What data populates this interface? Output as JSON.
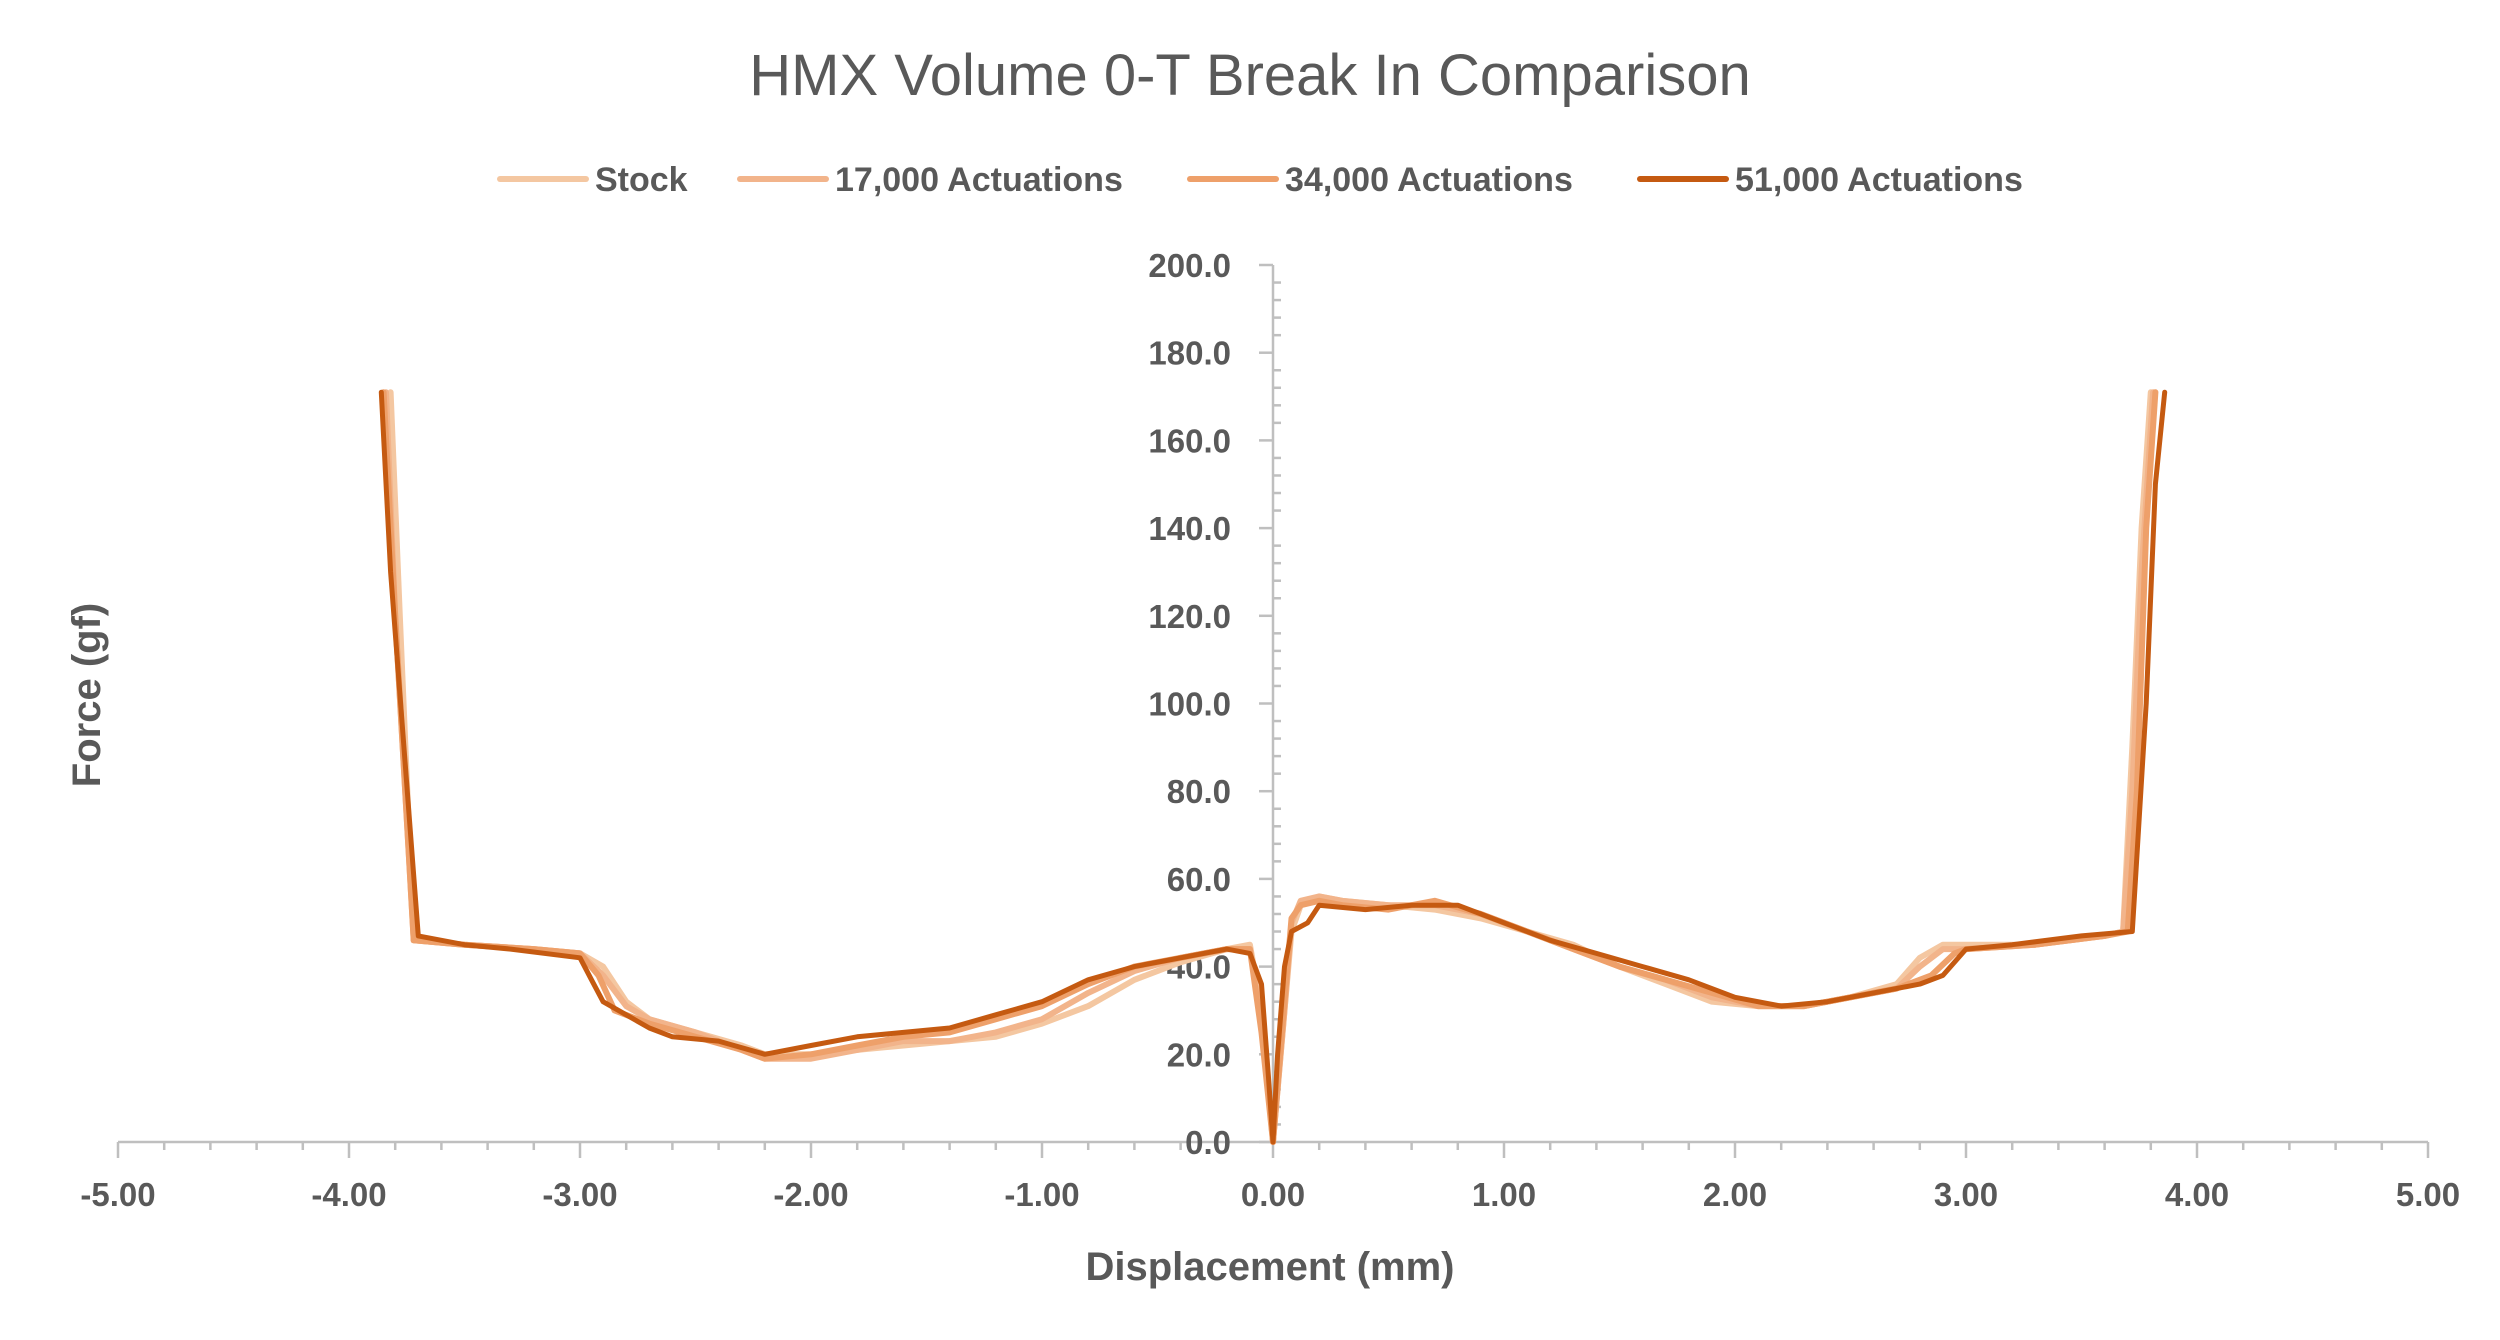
{
  "chart_data": {
    "type": "line",
    "title": "HMX Volume 0-T Break In Comparison",
    "xlabel": "Displacement (mm)",
    "ylabel": "Force (gf)",
    "xlim": [
      -5,
      5
    ],
    "ylim": [
      0,
      200
    ],
    "x_ticks": [
      "-5.00",
      "-4.00",
      "-3.00",
      "-2.00",
      "-1.00",
      "0.00",
      "1.00",
      "2.00",
      "3.00",
      "4.00",
      "5.00"
    ],
    "y_ticks": [
      "0.0",
      "20.0",
      "40.0",
      "60.0",
      "80.0",
      "100.0",
      "120.0",
      "140.0",
      "160.0",
      "180.0",
      "200.0"
    ],
    "grid": false,
    "legend_position": "top",
    "series": [
      {
        "name": "Stock",
        "color": "#f4c7a1",
        "points": [
          [
            -3.82,
            171
          ],
          [
            -3.78,
            120
          ],
          [
            -3.72,
            46
          ],
          [
            -3.5,
            45
          ],
          [
            -3.2,
            44
          ],
          [
            -3.0,
            43
          ],
          [
            -2.9,
            40
          ],
          [
            -2.8,
            32
          ],
          [
            -2.7,
            28
          ],
          [
            -2.5,
            25
          ],
          [
            -2.3,
            22
          ],
          [
            -2.2,
            20
          ],
          [
            -2.0,
            20
          ],
          [
            -1.8,
            21
          ],
          [
            -1.6,
            22
          ],
          [
            -1.4,
            23
          ],
          [
            -1.2,
            24
          ],
          [
            -1.0,
            27
          ],
          [
            -0.8,
            31
          ],
          [
            -0.6,
            37
          ],
          [
            -0.4,
            41
          ],
          [
            -0.2,
            44
          ],
          [
            -0.1,
            45
          ],
          [
            -0.05,
            30
          ],
          [
            0.0,
            0
          ],
          [
            0.05,
            30
          ],
          [
            0.08,
            48
          ],
          [
            0.12,
            54
          ],
          [
            0.2,
            56
          ],
          [
            0.3,
            55
          ],
          [
            0.5,
            54
          ],
          [
            0.7,
            53
          ],
          [
            0.9,
            51
          ],
          [
            1.1,
            48
          ],
          [
            1.3,
            45
          ],
          [
            1.5,
            40
          ],
          [
            1.7,
            36
          ],
          [
            1.9,
            32
          ],
          [
            2.1,
            31
          ],
          [
            2.3,
            31
          ],
          [
            2.5,
            33
          ],
          [
            2.7,
            36
          ],
          [
            2.8,
            42
          ],
          [
            2.9,
            45
          ],
          [
            3.0,
            45
          ],
          [
            3.3,
            45
          ],
          [
            3.6,
            47
          ],
          [
            3.68,
            48
          ],
          [
            3.72,
            90
          ],
          [
            3.76,
            140
          ],
          [
            3.8,
            171
          ]
        ]
      },
      {
        "name": "17,000 Actuations",
        "color": "#f2b48b",
        "points": [
          [
            -3.84,
            171
          ],
          [
            -3.8,
            120
          ],
          [
            -3.72,
            46
          ],
          [
            -3.5,
            45
          ],
          [
            -3.2,
            44
          ],
          [
            -3.0,
            43
          ],
          [
            -2.9,
            38
          ],
          [
            -2.8,
            31
          ],
          [
            -2.7,
            28
          ],
          [
            -2.5,
            25
          ],
          [
            -2.3,
            21
          ],
          [
            -2.2,
            19
          ],
          [
            -2.0,
            19
          ],
          [
            -1.8,
            21
          ],
          [
            -1.6,
            23
          ],
          [
            -1.4,
            23
          ],
          [
            -1.2,
            25
          ],
          [
            -1.0,
            28
          ],
          [
            -0.8,
            34
          ],
          [
            -0.6,
            39
          ],
          [
            -0.4,
            42
          ],
          [
            -0.2,
            44
          ],
          [
            -0.1,
            44
          ],
          [
            -0.05,
            28
          ],
          [
            0.0,
            0
          ],
          [
            0.05,
            30
          ],
          [
            0.08,
            50
          ],
          [
            0.12,
            55
          ],
          [
            0.2,
            56
          ],
          [
            0.3,
            55
          ],
          [
            0.5,
            54
          ],
          [
            0.7,
            54
          ],
          [
            0.9,
            52
          ],
          [
            1.1,
            48
          ],
          [
            1.3,
            44
          ],
          [
            1.5,
            40
          ],
          [
            1.7,
            37
          ],
          [
            1.9,
            33
          ],
          [
            2.1,
            31
          ],
          [
            2.3,
            31
          ],
          [
            2.5,
            33
          ],
          [
            2.7,
            35
          ],
          [
            2.8,
            40
          ],
          [
            2.9,
            44
          ],
          [
            3.0,
            44
          ],
          [
            3.3,
            45
          ],
          [
            3.6,
            47
          ],
          [
            3.68,
            48
          ],
          [
            3.72,
            80
          ],
          [
            3.76,
            130
          ],
          [
            3.81,
            171
          ]
        ]
      },
      {
        "name": "34,000 Actuations",
        "color": "#eea06a",
        "points": [
          [
            -3.85,
            171
          ],
          [
            -3.8,
            120
          ],
          [
            -3.72,
            46
          ],
          [
            -3.5,
            45
          ],
          [
            -3.2,
            44
          ],
          [
            -3.0,
            43
          ],
          [
            -2.92,
            38
          ],
          [
            -2.85,
            30
          ],
          [
            -2.7,
            27
          ],
          [
            -2.5,
            24
          ],
          [
            -2.3,
            21
          ],
          [
            -2.2,
            19
          ],
          [
            -2.0,
            20
          ],
          [
            -1.8,
            22
          ],
          [
            -1.6,
            24
          ],
          [
            -1.4,
            25
          ],
          [
            -1.2,
            28
          ],
          [
            -1.0,
            31
          ],
          [
            -0.8,
            36
          ],
          [
            -0.6,
            40
          ],
          [
            -0.4,
            42
          ],
          [
            -0.2,
            44
          ],
          [
            -0.1,
            44
          ],
          [
            -0.05,
            25
          ],
          [
            0.0,
            0
          ],
          [
            0.05,
            32
          ],
          [
            0.08,
            51
          ],
          [
            0.12,
            54
          ],
          [
            0.2,
            55
          ],
          [
            0.3,
            54
          ],
          [
            0.5,
            53
          ],
          [
            0.7,
            55
          ],
          [
            0.9,
            52
          ],
          [
            1.1,
            48
          ],
          [
            1.3,
            44
          ],
          [
            1.5,
            40
          ],
          [
            1.7,
            37
          ],
          [
            1.9,
            34
          ],
          [
            2.1,
            31
          ],
          [
            2.3,
            31
          ],
          [
            2.5,
            33
          ],
          [
            2.7,
            35
          ],
          [
            2.85,
            38
          ],
          [
            2.95,
            43
          ],
          [
            3.0,
            44
          ],
          [
            3.3,
            45
          ],
          [
            3.6,
            47
          ],
          [
            3.7,
            48
          ],
          [
            3.74,
            80
          ],
          [
            3.78,
            140
          ],
          [
            3.82,
            171
          ]
        ]
      },
      {
        "name": "51,000 Actuations",
        "color": "#c55a11",
        "points": [
          [
            -3.86,
            171
          ],
          [
            -3.82,
            130
          ],
          [
            -3.7,
            47
          ],
          [
            -3.5,
            45
          ],
          [
            -3.3,
            44
          ],
          [
            -3.0,
            42
          ],
          [
            -2.95,
            37
          ],
          [
            -2.9,
            32
          ],
          [
            -2.8,
            29
          ],
          [
            -2.7,
            26
          ],
          [
            -2.6,
            24
          ],
          [
            -2.4,
            23
          ],
          [
            -2.2,
            20
          ],
          [
            -2.0,
            22
          ],
          [
            -1.8,
            24
          ],
          [
            -1.6,
            25
          ],
          [
            -1.4,
            26
          ],
          [
            -1.2,
            29
          ],
          [
            -1.0,
            32
          ],
          [
            -0.8,
            37
          ],
          [
            -0.6,
            40
          ],
          [
            -0.4,
            42
          ],
          [
            -0.2,
            44
          ],
          [
            -0.1,
            43
          ],
          [
            -0.05,
            36
          ],
          [
            -0.02,
            15
          ],
          [
            0.0,
            0
          ],
          [
            0.02,
            20
          ],
          [
            0.05,
            40
          ],
          [
            0.08,
            48
          ],
          [
            0.15,
            50
          ],
          [
            0.2,
            54
          ],
          [
            0.4,
            53
          ],
          [
            0.6,
            54
          ],
          [
            0.8,
            54
          ],
          [
            1.0,
            50
          ],
          [
            1.2,
            46
          ],
          [
            1.4,
            43
          ],
          [
            1.6,
            40
          ],
          [
            1.8,
            37
          ],
          [
            2.0,
            33
          ],
          [
            2.2,
            31
          ],
          [
            2.4,
            32
          ],
          [
            2.6,
            34
          ],
          [
            2.8,
            36
          ],
          [
            2.9,
            38
          ],
          [
            3.0,
            44
          ],
          [
            3.2,
            45
          ],
          [
            3.5,
            47
          ],
          [
            3.72,
            48
          ],
          [
            3.78,
            100
          ],
          [
            3.82,
            150
          ],
          [
            3.86,
            171
          ]
        ]
      }
    ]
  }
}
